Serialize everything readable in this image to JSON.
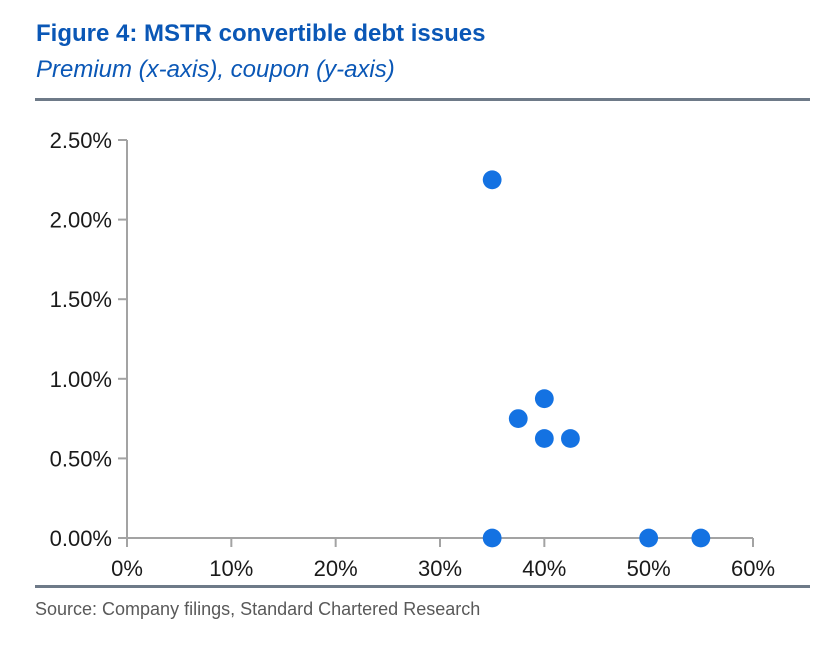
{
  "figure": {
    "title": "Figure 4: MSTR convertible debt issues",
    "subtitle": "Premium (x-axis), coupon (y-axis)",
    "source": "Source: Company filings, Standard Chartered Research"
  },
  "colors": {
    "heading_blue": "#0a57b6",
    "dot_blue": "#1472e2",
    "axis_gray": "#a3a3a3",
    "rule_gray": "#6e7a88",
    "source_gray": "#595959",
    "tick_label_black": "#1a1a1a"
  },
  "chart_data": {
    "type": "scatter",
    "title": "Figure 4: MSTR convertible debt issues",
    "xlabel": "Premium",
    "ylabel": "Coupon",
    "x_unit": "%",
    "y_unit": "%",
    "xlim": [
      0,
      60
    ],
    "ylim": [
      0,
      2.5
    ],
    "x_ticks": [
      0,
      10,
      20,
      30,
      40,
      50,
      60
    ],
    "x_tick_labels": [
      "0%",
      "10%",
      "20%",
      "30%",
      "40%",
      "50%",
      "60%"
    ],
    "y_ticks": [
      0,
      0.5,
      1.0,
      1.5,
      2.0,
      2.5
    ],
    "y_tick_labels": [
      "0.00%",
      "0.50%",
      "1.00%",
      "1.50%",
      "2.00%",
      "2.50%"
    ],
    "grid": false,
    "legend": false,
    "points": [
      {
        "x": 35,
        "y": 2.25
      },
      {
        "x": 37.5,
        "y": 0.75
      },
      {
        "x": 40,
        "y": 0.875
      },
      {
        "x": 40,
        "y": 0.625
      },
      {
        "x": 42.5,
        "y": 0.625
      },
      {
        "x": 35,
        "y": 0.0
      },
      {
        "x": 50,
        "y": 0.0
      },
      {
        "x": 55,
        "y": 0.0
      }
    ]
  }
}
